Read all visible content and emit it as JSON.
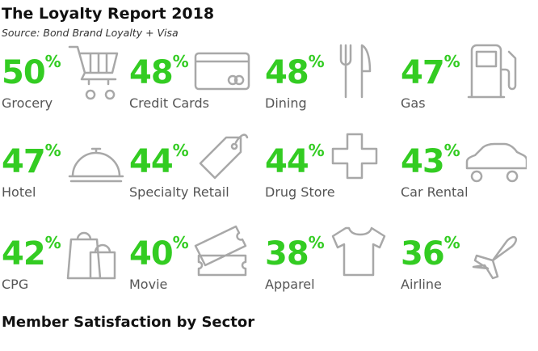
{
  "header": {
    "title": "The Loyalty Report 2018",
    "source": "Source: Bond Brand Loyalty + Visa"
  },
  "unit": "%",
  "items": [
    {
      "value": 50,
      "label": "Grocery"
    },
    {
      "value": 48,
      "label": "Credit Cards"
    },
    {
      "value": 48,
      "label": "Dining"
    },
    {
      "value": 47,
      "label": "Gas"
    },
    {
      "value": 47,
      "label": "Hotel"
    },
    {
      "value": 44,
      "label": "Specialty Retail"
    },
    {
      "value": 44,
      "label": "Drug Store"
    },
    {
      "value": 43,
      "label": "Car Rental"
    },
    {
      "value": 42,
      "label": "CPG"
    },
    {
      "value": 40,
      "label": "Movie"
    },
    {
      "value": 38,
      "label": "Apparel"
    },
    {
      "value": 36,
      "label": "Airline"
    }
  ],
  "footer": "Member Satisfaction by Sector"
}
